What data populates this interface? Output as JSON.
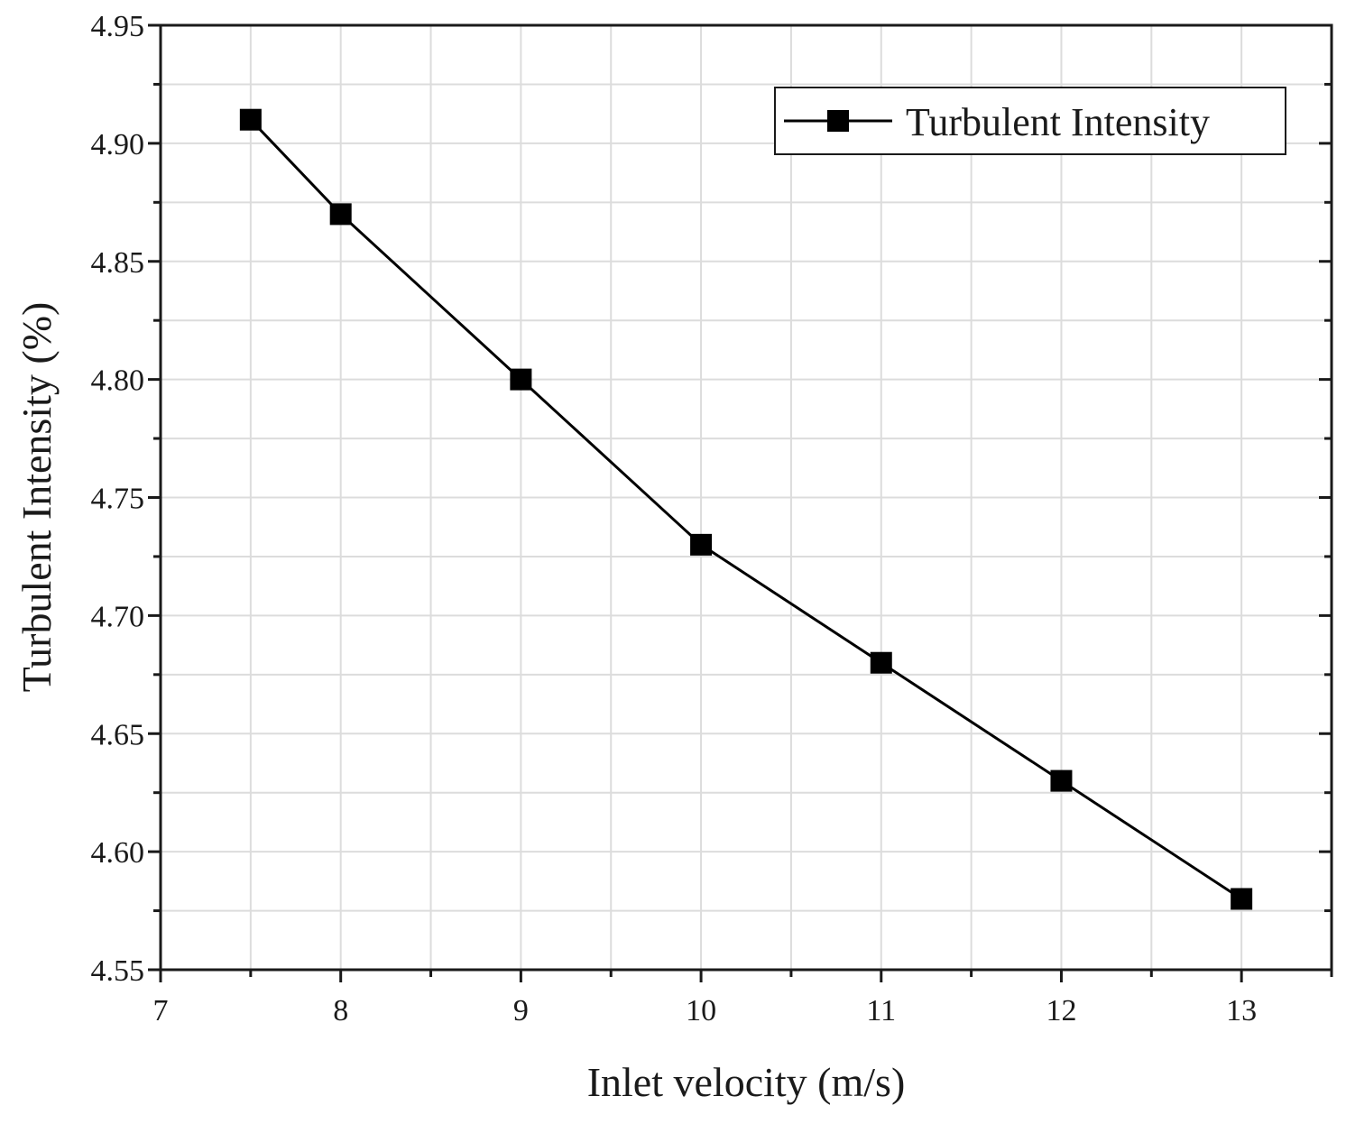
{
  "chart_data": {
    "type": "line",
    "title": "",
    "xlabel": "Inlet velocity (m/s)",
    "ylabel": "Turbulent Intensity (%)",
    "xlim": [
      7,
      13.5
    ],
    "ylim": [
      4.55,
      4.95
    ],
    "x_ticks": [
      7,
      8,
      9,
      10,
      11,
      12,
      13
    ],
    "y_ticks": [
      4.55,
      4.6,
      4.65,
      4.7,
      4.75,
      4.8,
      4.85,
      4.9,
      4.95
    ],
    "x_tick_labels": [
      "7",
      "8",
      "9",
      "10",
      "11",
      "12",
      "13"
    ],
    "y_tick_labels": [
      "4.55",
      "4.60",
      "4.65",
      "4.70",
      "4.75",
      "4.80",
      "4.85",
      "4.90",
      "4.95"
    ],
    "grid": true,
    "legend_position": "top-right",
    "series": [
      {
        "name": "Turbulent Intensity",
        "marker": "square",
        "color": "#000000",
        "x": [
          7.5,
          8,
          9,
          10,
          11,
          12,
          13
        ],
        "values": [
          4.91,
          4.87,
          4.8,
          4.73,
          4.68,
          4.63,
          4.58
        ]
      }
    ]
  }
}
